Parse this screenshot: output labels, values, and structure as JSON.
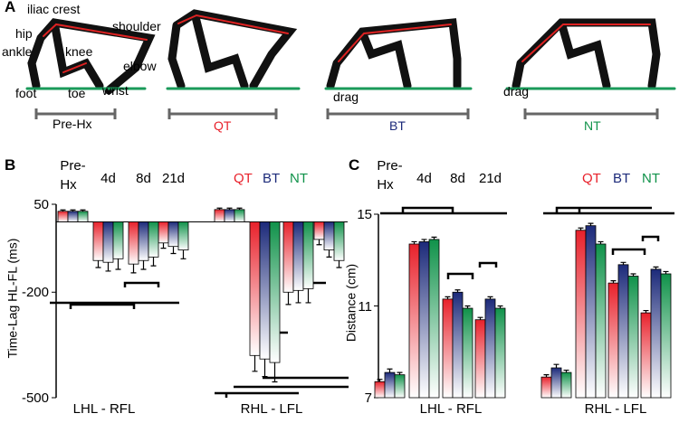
{
  "panel_a": {
    "label": "A",
    "labels": [
      "iliac crest",
      "hip",
      "ankle",
      "knee",
      "shoulder",
      "elbow",
      "foot",
      "toe",
      "wrist",
      "drag",
      "drag"
    ],
    "conditions": [
      "Pre-Hx",
      "QT",
      "BT",
      "NT"
    ]
  },
  "chart_data": [
    {
      "type": "bar",
      "panel": "B",
      "y_label": "Time-Lag HL-FL (ms)",
      "ylim": [
        -500,
        50
      ],
      "yticks": [
        50,
        -200,
        -500
      ],
      "categories": [
        "Pre-\nHx",
        "4d",
        "8d",
        "21d",
        null,
        null,
        null,
        null
      ],
      "groups": [
        "LHL - RFL",
        "RHL - LFL"
      ],
      "series": [
        {
          "name": "QT",
          "color": "#e8212b",
          "values": [
            30,
            -110,
            -120,
            -60,
            35,
            -380,
            -200,
            -50
          ],
          "errors": [
            4,
            20,
            25,
            15,
            4,
            45,
            35,
            15
          ]
        },
        {
          "name": "BT",
          "color": "#1c2a7a",
          "values": [
            30,
            -115,
            -110,
            -70,
            35,
            -390,
            -195,
            -80
          ],
          "errors": [
            4,
            25,
            25,
            20,
            4,
            50,
            35,
            20
          ]
        },
        {
          "name": "NT",
          "color": "#10924a",
          "values": [
            30,
            -105,
            -100,
            -80,
            35,
            -400,
            -190,
            -110
          ],
          "errors": [
            4,
            30,
            25,
            25,
            4,
            55,
            40,
            20
          ]
        }
      ]
    },
    {
      "type": "bar",
      "panel": "C",
      "y_label": "Distance (cm)",
      "ylim": [
        7,
        15
      ],
      "yticks": [
        7,
        11,
        15
      ],
      "categories": [
        "Pre-\nHx",
        "4d",
        "8d",
        "21d",
        null,
        null,
        null,
        null
      ],
      "groups": [
        "LHL - RFL",
        "RHL - LFL"
      ],
      "series": [
        {
          "name": "QT",
          "color": "#e8212b",
          "values": [
            7.7,
            13.7,
            11.3,
            10.4,
            7.9,
            14.3,
            12.0,
            10.7
          ],
          "errors": [
            0.1,
            0.1,
            0.1,
            0.1,
            0.1,
            0.1,
            0.1,
            0.1
          ]
        },
        {
          "name": "BT",
          "color": "#1c2a7a",
          "values": [
            8.1,
            13.8,
            11.6,
            11.3,
            8.3,
            14.5,
            12.8,
            12.6
          ],
          "errors": [
            0.15,
            0.1,
            0.1,
            0.1,
            0.15,
            0.1,
            0.1,
            0.1
          ]
        },
        {
          "name": "NT",
          "color": "#10924a",
          "values": [
            8.0,
            13.9,
            10.9,
            10.9,
            8.1,
            13.7,
            12.3,
            12.4
          ],
          "errors": [
            0.1,
            0.1,
            0.1,
            0.1,
            0.1,
            0.1,
            0.1,
            0.1
          ]
        }
      ]
    }
  ]
}
